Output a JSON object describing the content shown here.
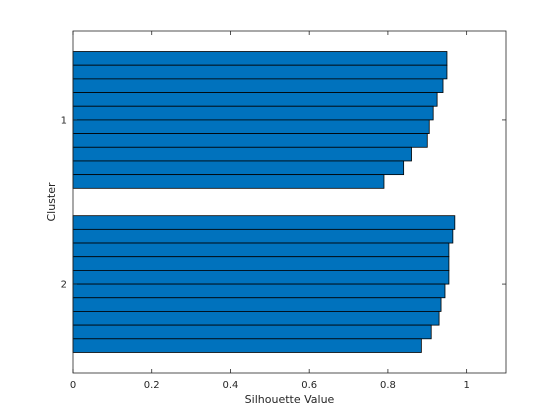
{
  "chart_data": {
    "type": "bar",
    "orientation": "horizontal",
    "xlabel": "Silhouette Value",
    "ylabel": "Cluster",
    "xlim": [
      0,
      1.1
    ],
    "xticks": [
      "0",
      "0.2",
      "0.4",
      "0.6",
      "0.8",
      "1"
    ],
    "xtick_values": [
      0,
      0.2,
      0.4,
      0.6,
      0.8,
      1
    ],
    "grid": false,
    "bar_color": "#0072BD",
    "edge_color": "#000000",
    "clusters": [
      {
        "label": "1",
        "values": [
          0.95,
          0.95,
          0.94,
          0.925,
          0.915,
          0.905,
          0.9,
          0.86,
          0.84,
          0.79
        ]
      },
      {
        "label": "2",
        "values": [
          0.97,
          0.965,
          0.955,
          0.955,
          0.955,
          0.945,
          0.935,
          0.93,
          0.91,
          0.885
        ]
      }
    ]
  }
}
